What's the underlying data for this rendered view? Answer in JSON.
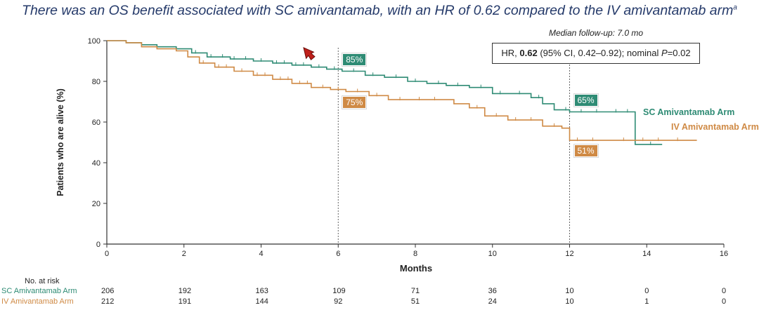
{
  "title": {
    "text": "There was an OS benefit associated with SC amivantamab, with an HR of 0.62 compared to the IV amivantamab arm",
    "footnote_mark": "a"
  },
  "colors": {
    "sc": "#2e8b74",
    "iv": "#cf8a45",
    "title": "#253a6a"
  },
  "followup": "Median follow-up: 7.0 mo",
  "hr_box": {
    "prefix": "HR, ",
    "hr": "0.62",
    "ci": " (95% CI, 0.42–0.92); nominal ",
    "p_label": "P",
    "p_value": "=0.02"
  },
  "cursor_icon": "arrow-cursor-icon",
  "risk_table": {
    "header": "No. at risk",
    "rows": [
      {
        "name": "SC Amivantamab Arm",
        "values": [
          "206",
          "192",
          "163",
          "109",
          "71",
          "36",
          "10",
          "0",
          "0"
        ]
      },
      {
        "name": "IV Amivantamab Arm",
        "values": [
          "212",
          "191",
          "144",
          "92",
          "51",
          "24",
          "10",
          "1",
          "0"
        ]
      }
    ]
  },
  "chart_data": {
    "type": "line",
    "xlabel": "Months",
    "ylabel": "Patients who are alive (%)",
    "xlim": [
      0,
      16
    ],
    "ylim": [
      0,
      100
    ],
    "xticks": [
      0,
      2,
      4,
      6,
      8,
      10,
      12,
      14,
      16
    ],
    "yticks": [
      0,
      20,
      40,
      60,
      80,
      100
    ],
    "grid": false,
    "reference_lines_x": [
      6,
      12
    ],
    "series": [
      {
        "name": "SC Amivantamab Arm",
        "color": "#2e8b74",
        "step": true,
        "x": [
          0,
          0.5,
          0.9,
          1.3,
          1.8,
          2.2,
          2.6,
          3.2,
          3.8,
          4.3,
          4.8,
          5.3,
          5.7,
          6.1,
          6.7,
          7.2,
          7.8,
          8.3,
          8.8,
          9.4,
          10.0,
          10.4,
          11.0,
          11.3,
          11.6,
          12.0,
          12.5,
          13.0,
          13.7,
          14.4
        ],
        "y": [
          100,
          99,
          98,
          97,
          96,
          94,
          92,
          91,
          90,
          89,
          88,
          87,
          86,
          85,
          83,
          82,
          80,
          79,
          78,
          77,
          74,
          74,
          72,
          69,
          66,
          65,
          65,
          65,
          49,
          49
        ]
      },
      {
        "name": "IV Amivantamab Arm",
        "color": "#cf8a45",
        "step": true,
        "x": [
          0,
          0.5,
          0.9,
          1.3,
          1.8,
          2.1,
          2.4,
          2.8,
          3.3,
          3.8,
          4.3,
          4.8,
          5.3,
          5.8,
          6.2,
          6.8,
          7.3,
          8.7,
          9.0,
          9.4,
          9.8,
          10.4,
          10.8,
          11.3,
          11.8,
          12.0,
          13.0,
          14.0,
          15.3
        ],
        "y": [
          100,
          99,
          97,
          96,
          95,
          92,
          89,
          87,
          85,
          83,
          81,
          79,
          77,
          76,
          75,
          73,
          71,
          71,
          69,
          67,
          63,
          61,
          61,
          58,
          57,
          51,
          51,
          51,
          51
        ]
      }
    ],
    "annotations": [
      {
        "text": "85%",
        "x": 6,
        "y": 85,
        "series": "SC Amivantamab Arm"
      },
      {
        "text": "75%",
        "x": 6,
        "y": 75,
        "series": "IV Amivantamab Arm"
      },
      {
        "text": "65%",
        "x": 12,
        "y": 65,
        "series": "SC Amivantamab Arm"
      },
      {
        "text": "51%",
        "x": 12,
        "y": 51,
        "series": "IV Amivantamab Arm"
      }
    ],
    "censor_marks": [
      {
        "series": "SC Amivantamab Arm",
        "x": [
          2.3,
          2.7,
          3.0,
          3.3,
          3.6,
          4.0,
          4.4,
          4.6,
          4.9,
          5.1,
          5.5,
          5.9,
          6.4,
          6.9,
          7.5,
          8.0,
          8.6,
          9.1,
          9.7,
          10.2,
          10.7,
          11.2,
          11.9,
          12.3,
          12.7,
          13.2,
          13.5,
          14.1
        ]
      },
      {
        "series": "IV Amivantamab Arm",
        "x": [
          2.5,
          2.9,
          3.1,
          3.5,
          3.9,
          4.1,
          4.5,
          4.7,
          5.0,
          5.2,
          5.6,
          6.0,
          6.5,
          7.0,
          7.6,
          8.1,
          8.5,
          9.6,
          10.1,
          10.6,
          11.0,
          11.6,
          12.2,
          12.6,
          13.4,
          13.9,
          14.3,
          14.8
        ]
      }
    ],
    "series_labels": [
      {
        "text": "SC Amivantamab Arm",
        "series": "SC Amivantamab Arm"
      },
      {
        "text": "IV Amivantamab Arm",
        "series": "IV Amivantamab Arm"
      }
    ]
  }
}
